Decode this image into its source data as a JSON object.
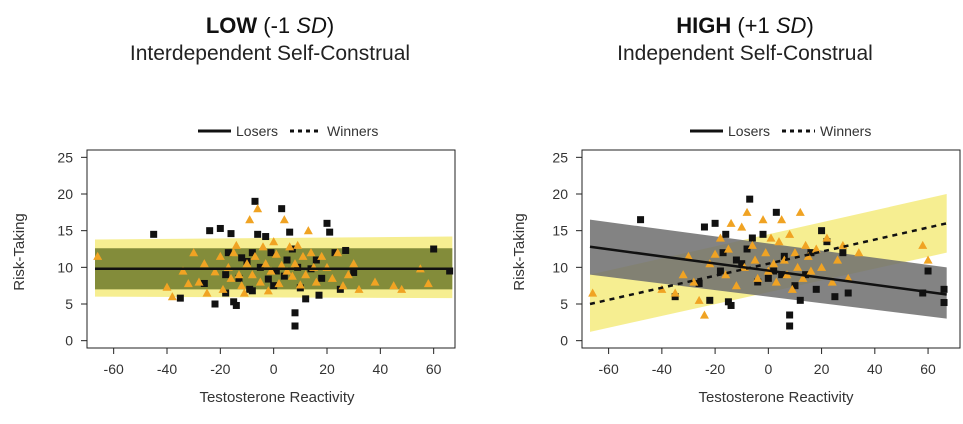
{
  "chart_data": [
    {
      "type": "scatter",
      "title_bold": "LOW",
      "title_level": " (-1 ",
      "title_sd": "SD",
      "title_close": ")",
      "subtitle": "Interdependent Self-Construal",
      "xlabel": "Testosterone Reactivity",
      "ylabel": "Risk-Taking",
      "xlim": [
        -70,
        68
      ],
      "ylim": [
        -1,
        26
      ],
      "xticks": [
        -60,
        -40,
        -20,
        0,
        20,
        40,
        60
      ],
      "yticks": [
        0,
        5,
        10,
        15,
        20,
        25
      ],
      "legend": [
        "Losers",
        "Winners"
      ],
      "legend_position": "top-center",
      "bands": [
        {
          "name": "Losers",
          "color": "#6e7a2a",
          "x0": -67,
          "x1": 67,
          "lo0": 7.0,
          "hi0": 12.6,
          "lo1": 7.0,
          "hi1": 12.6
        },
        {
          "name": "Winners",
          "color": "#f4eb7e",
          "x0": -67,
          "x1": 67,
          "lo0": 6.0,
          "hi0": 13.8,
          "lo1": 5.8,
          "hi1": 14.2
        }
      ],
      "lines": [
        {
          "name": "Losers",
          "dash": false,
          "x0": -67,
          "x1": 67,
          "y0": 9.8,
          "y1": 9.8
        },
        {
          "name": "Winners",
          "dash": true,
          "x0": -67,
          "x1": 67,
          "y0": 9.8,
          "y1": 9.8
        }
      ],
      "squares": [
        [
          -45,
          14.5
        ],
        [
          -35,
          5.8
        ],
        [
          -26,
          7.8
        ],
        [
          -24,
          15.0
        ],
        [
          -22,
          5.0
        ],
        [
          -20,
          15.3
        ],
        [
          -18,
          9.0
        ],
        [
          -18,
          6.5
        ],
        [
          -17,
          12.0
        ],
        [
          -16,
          14.6
        ],
        [
          -15,
          5.3
        ],
        [
          -14,
          4.8
        ],
        [
          -13,
          8.5
        ],
        [
          -12,
          11.3
        ],
        [
          -10,
          10.8
        ],
        [
          -9,
          7.0
        ],
        [
          -8,
          12.0
        ],
        [
          -8,
          6.8
        ],
        [
          -7,
          19.0
        ],
        [
          -6,
          14.5
        ],
        [
          -5,
          10.0
        ],
        [
          -3,
          14.2
        ],
        [
          -2,
          8.4
        ],
        [
          -1,
          12.0
        ],
        [
          0,
          7.5
        ],
        [
          1,
          9.5
        ],
        [
          3,
          18.0
        ],
        [
          4,
          8.8
        ],
        [
          5,
          11.0
        ],
        [
          6,
          14.8
        ],
        [
          7,
          12.5
        ],
        [
          8,
          3.8
        ],
        [
          8,
          2.0
        ],
        [
          9,
          10.0
        ],
        [
          10,
          7.2
        ],
        [
          12,
          5.7
        ],
        [
          14,
          9.8
        ],
        [
          16,
          11.0
        ],
        [
          17,
          6.2
        ],
        [
          18,
          8.5
        ],
        [
          20,
          16.0
        ],
        [
          21,
          14.8
        ],
        [
          23,
          12.0
        ],
        [
          25,
          7.0
        ],
        [
          27,
          12.3
        ],
        [
          30,
          9.3
        ],
        [
          60,
          12.5
        ],
        [
          66,
          9.5
        ]
      ],
      "triangles": [
        [
          -66,
          11.5
        ],
        [
          -40,
          7.3
        ],
        [
          -38,
          6.0
        ],
        [
          -34,
          9.5
        ],
        [
          -32,
          7.8
        ],
        [
          -30,
          12.0
        ],
        [
          -28,
          8.0
        ],
        [
          -26,
          10.5
        ],
        [
          -25,
          6.5
        ],
        [
          -22,
          9.4
        ],
        [
          -20,
          11.5
        ],
        [
          -19,
          7.0
        ],
        [
          -17,
          10.0
        ],
        [
          -16,
          8.5
        ],
        [
          -15,
          12.0
        ],
        [
          -14,
          13.0
        ],
        [
          -13,
          9.0
        ],
        [
          -12,
          7.5
        ],
        [
          -11,
          6.5
        ],
        [
          -10,
          10.5
        ],
        [
          -9,
          16.5
        ],
        [
          -8,
          9.0
        ],
        [
          -7,
          11.5
        ],
        [
          -6,
          18.0
        ],
        [
          -5,
          8.0
        ],
        [
          -4,
          12.8
        ],
        [
          -3,
          10.5
        ],
        [
          -2,
          6.8
        ],
        [
          -1,
          9.5
        ],
        [
          0,
          13.5
        ],
        [
          1,
          11.8
        ],
        [
          2,
          7.8
        ],
        [
          3,
          10.3
        ],
        [
          4,
          16.5
        ],
        [
          5,
          9.5
        ],
        [
          6,
          12.8
        ],
        [
          7,
          8.8
        ],
        [
          8,
          10.5
        ],
        [
          9,
          13.0
        ],
        [
          10,
          7.6
        ],
        [
          11,
          11.5
        ],
        [
          12,
          9.0
        ],
        [
          13,
          15.0
        ],
        [
          14,
          12.0
        ],
        [
          15,
          10.0
        ],
        [
          16,
          8.0
        ],
        [
          18,
          11.5
        ],
        [
          20,
          10.0
        ],
        [
          22,
          8.5
        ],
        [
          24,
          12.0
        ],
        [
          26,
          7.5
        ],
        [
          28,
          9.0
        ],
        [
          30,
          10.5
        ],
        [
          32,
          7.0
        ],
        [
          38,
          8.0
        ],
        [
          45,
          7.5
        ],
        [
          48,
          7.0
        ],
        [
          55,
          9.8
        ],
        [
          58,
          7.8
        ]
      ]
    },
    {
      "type": "scatter",
      "title_bold": "HIGH",
      "title_level": " (+1 ",
      "title_sd": "SD",
      "title_close": ")",
      "subtitle": "Independent Self-Construal",
      "xlabel": "Testosterone Reactivity",
      "ylabel": "Risk-Taking",
      "xlim": [
        -70,
        72
      ],
      "ylim": [
        -1,
        26
      ],
      "xticks": [
        -60,
        -40,
        -20,
        0,
        20,
        40,
        60
      ],
      "yticks": [
        0,
        5,
        10,
        15,
        20,
        25
      ],
      "legend": [
        "Losers",
        "Winners"
      ],
      "legend_position": "top-center",
      "bands": [
        {
          "name": "Losers",
          "color": "#6d6d6d",
          "x0": -67,
          "x1": 67,
          "lo0": 9.0,
          "hi0": 16.5,
          "lo1": 3.0,
          "hi1": 10.0
        },
        {
          "name": "Winners",
          "color": "#f4eb7e",
          "x0": -67,
          "x1": 67,
          "lo0": 1.2,
          "hi0": 9.0,
          "lo1": 12.0,
          "hi1": 20.0
        }
      ],
      "lines": [
        {
          "name": "Losers",
          "dash": false,
          "x0": -67,
          "x1": 67,
          "y0": 12.8,
          "y1": 6.3
        },
        {
          "name": "Winners",
          "dash": true,
          "x0": -67,
          "x1": 67,
          "y0": 5.0,
          "y1": 16.0
        }
      ],
      "squares": [
        [
          -48,
          16.5
        ],
        [
          -35,
          6.0
        ],
        [
          -26,
          7.8
        ],
        [
          -24,
          15.5
        ],
        [
          -22,
          5.5
        ],
        [
          -20,
          16.0
        ],
        [
          -18,
          9.5
        ],
        [
          -17,
          12.0
        ],
        [
          -16,
          14.5
        ],
        [
          -15,
          5.3
        ],
        [
          -14,
          4.8
        ],
        [
          -12,
          11.0
        ],
        [
          -10,
          10.5
        ],
        [
          -8,
          12.5
        ],
        [
          -7,
          19.3
        ],
        [
          -6,
          14.0
        ],
        [
          -4,
          8.0
        ],
        [
          -2,
          14.5
        ],
        [
          0,
          8.5
        ],
        [
          2,
          9.5
        ],
        [
          3,
          17.5
        ],
        [
          5,
          9.0
        ],
        [
          6,
          11.5
        ],
        [
          8,
          3.5
        ],
        [
          8,
          2.0
        ],
        [
          10,
          7.5
        ],
        [
          12,
          5.5
        ],
        [
          14,
          9.0
        ],
        [
          16,
          12.0
        ],
        [
          18,
          7.0
        ],
        [
          20,
          15.0
        ],
        [
          22,
          13.5
        ],
        [
          25,
          6.0
        ],
        [
          28,
          12.0
        ],
        [
          30,
          6.5
        ],
        [
          58,
          6.5
        ],
        [
          60,
          9.5
        ],
        [
          66,
          7.0
        ],
        [
          66,
          5.2
        ]
      ],
      "triangles": [
        [
          -66,
          6.5
        ],
        [
          -40,
          7.0
        ],
        [
          -35,
          6.5
        ],
        [
          -32,
          9.0
        ],
        [
          -30,
          11.5
        ],
        [
          -28,
          8.0
        ],
        [
          -26,
          5.5
        ],
        [
          -24,
          3.5
        ],
        [
          -22,
          10.5
        ],
        [
          -20,
          11.8
        ],
        [
          -18,
          14.0
        ],
        [
          -16,
          9.0
        ],
        [
          -15,
          12.5
        ],
        [
          -14,
          16.0
        ],
        [
          -12,
          7.5
        ],
        [
          -10,
          15.5
        ],
        [
          -9,
          10.0
        ],
        [
          -8,
          17.5
        ],
        [
          -6,
          13.0
        ],
        [
          -5,
          11.0
        ],
        [
          -4,
          8.5
        ],
        [
          -2,
          16.5
        ],
        [
          -1,
          12.0
        ],
        [
          0,
          9.5
        ],
        [
          1,
          14.0
        ],
        [
          2,
          10.5
        ],
        [
          3,
          8.0
        ],
        [
          4,
          13.5
        ],
        [
          5,
          16.5
        ],
        [
          6,
          11.0
        ],
        [
          7,
          9.0
        ],
        [
          8,
          14.5
        ],
        [
          9,
          7.0
        ],
        [
          10,
          12.0
        ],
        [
          11,
          10.0
        ],
        [
          12,
          17.5
        ],
        [
          13,
          8.5
        ],
        [
          14,
          13.0
        ],
        [
          15,
          11.5
        ],
        [
          16,
          9.5
        ],
        [
          18,
          12.5
        ],
        [
          20,
          10.0
        ],
        [
          22,
          14.0
        ],
        [
          24,
          8.0
        ],
        [
          26,
          11.0
        ],
        [
          28,
          13.0
        ],
        [
          30,
          8.5
        ],
        [
          34,
          12.0
        ],
        [
          58,
          13.0
        ],
        [
          60,
          11.0
        ]
      ]
    }
  ]
}
